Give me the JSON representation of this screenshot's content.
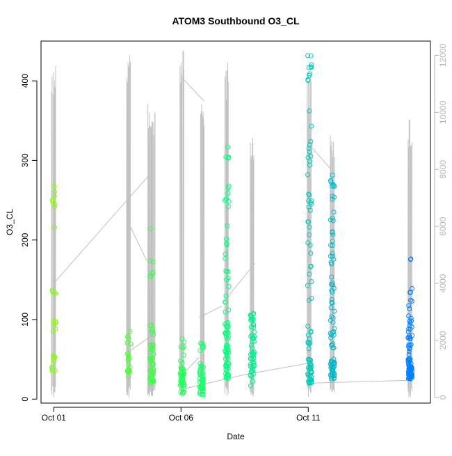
{
  "chart_data": {
    "type": "scatter",
    "title": "ATOM3 Southbound O3_CL",
    "xlabel": "Date",
    "ylabel": "O3_CL",
    "x_ticks": [
      {
        "day": 1,
        "label": "Oct 01"
      },
      {
        "day": 6,
        "label": "Oct 06"
      },
      {
        "day": 11,
        "label": "Oct 11"
      }
    ],
    "xlim_days": [
      0.5,
      15.8
    ],
    "ylim": [
      -5,
      450
    ],
    "y_ticks": [
      0,
      100,
      200,
      300,
      400
    ],
    "y2lim": [
      -200,
      12500
    ],
    "y2_ticks": [
      0,
      2000,
      4000,
      6000,
      8000,
      10000,
      12000
    ],
    "grid": false,
    "colors": {
      "points_start": "#80ff00",
      "points_mid": "#00ff80",
      "points_end": "#0080ff",
      "altitude_line": "#c0c0c0",
      "right_axis": "#b3b3b3"
    },
    "point_clusters": [
      {
        "x": 1.0,
        "groups": [
          [
            35,
            62,
            10
          ],
          [
            85,
            100,
            6
          ],
          [
            128,
            138,
            4
          ],
          [
            214,
            274,
            8
          ]
        ]
      },
      {
        "x": 3.95,
        "groups": [
          [
            25,
            60,
            14
          ],
          [
            65,
            88,
            5
          ]
        ]
      },
      {
        "x": 4.85,
        "groups": [
          [
            20,
            70,
            40
          ],
          [
            80,
            95,
            6
          ],
          [
            140,
            175,
            6
          ],
          [
            214,
            214,
            1
          ]
        ]
      },
      {
        "x": 6.05,
        "groups": [
          [
            5,
            40,
            40
          ],
          [
            45,
            80,
            8
          ]
        ]
      },
      {
        "x": 6.8,
        "groups": [
          [
            5,
            40,
            40
          ],
          [
            40,
            72,
            10
          ]
        ]
      },
      {
        "x": 7.8,
        "groups": [
          [
            25,
            60,
            30
          ],
          [
            60,
            100,
            25
          ],
          [
            100,
            200,
            15
          ],
          [
            200,
            335,
            14
          ]
        ]
      },
      {
        "x": 8.8,
        "groups": [
          [
            15,
            60,
            30
          ],
          [
            60,
            110,
            25
          ]
        ]
      },
      {
        "x": 11.05,
        "groups": [
          [
            20,
            50,
            35
          ],
          [
            50,
            100,
            10
          ],
          [
            100,
            300,
            25
          ],
          [
            300,
            365,
            8
          ],
          [
            400,
            437,
            10
          ]
        ]
      },
      {
        "x": 11.95,
        "groups": [
          [
            25,
            50,
            30
          ],
          [
            50,
            100,
            15
          ],
          [
            100,
            285,
            40
          ]
        ]
      },
      {
        "x": 15.0,
        "groups": [
          [
            25,
            45,
            50
          ],
          [
            45,
            100,
            30
          ],
          [
            100,
            140,
            10
          ],
          [
            175,
            178,
            2
          ]
        ]
      }
    ],
    "altitude_profiles": [
      {
        "x": 1.0,
        "top": 11800
      },
      {
        "x": 3.95,
        "top": 12400
      },
      {
        "x": 4.78,
        "top": 10400
      },
      {
        "x": 4.92,
        "top": 10200
      },
      {
        "x": 6.05,
        "top": 12400
      },
      {
        "x": 6.85,
        "top": 10800
      },
      {
        "x": 7.8,
        "top": 11800
      },
      {
        "x": 8.8,
        "top": 9200
      },
      {
        "x": 11.05,
        "top": 11400
      },
      {
        "x": 11.95,
        "top": 9400
      },
      {
        "x": 15.0,
        "top": 9800
      }
    ],
    "altitude_connectors": [
      [
        [
          1.0,
          4000
        ],
        [
          4.75,
          7800
        ]
      ],
      [
        [
          3.95,
          6100
        ],
        [
          4.65,
          4800
        ]
      ],
      [
        [
          3.95,
          1600
        ],
        [
          4.9,
          2200
        ]
      ],
      [
        [
          6.05,
          11200
        ],
        [
          6.9,
          10400
        ]
      ],
      [
        [
          6.05,
          800
        ],
        [
          6.7,
          1400
        ]
      ],
      [
        [
          6.7,
          2800
        ],
        [
          7.6,
          3200
        ]
      ],
      [
        [
          7.9,
          3600
        ],
        [
          8.9,
          4700
        ]
      ],
      [
        [
          6.1,
          300
        ],
        [
          8.5,
          800
        ]
      ],
      [
        [
          8.5,
          800
        ],
        [
          11.0,
          1200
        ]
      ],
      [
        [
          11.2,
          500
        ],
        [
          14.9,
          600
        ]
      ],
      [
        [
          11.1,
          8800
        ],
        [
          11.9,
          8000
        ]
      ]
    ]
  }
}
